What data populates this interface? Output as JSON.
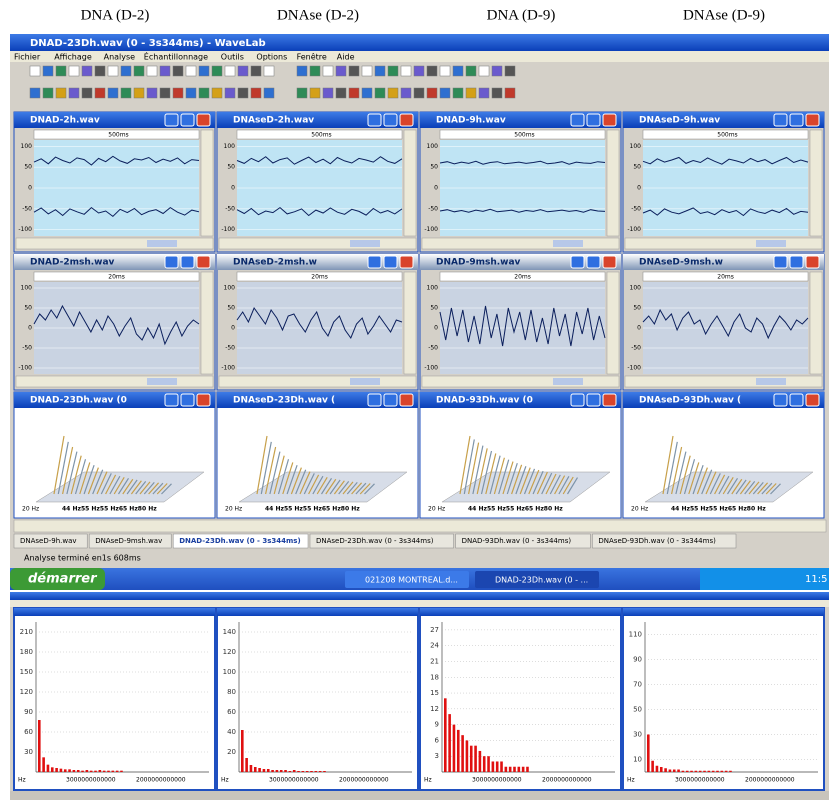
{
  "column_labels": [
    "DNA (D-2)",
    "DNAse (D-2)",
    "DNA (D-9)",
    "DNAse (D-9)"
  ],
  "window": {
    "title": "DNAD-23Dh.wav (0 - 3s344ms) - WaveLab",
    "menu": [
      "Fichier",
      "Affichage",
      "Analyse",
      "Échantillonnage",
      "Outils",
      "Options",
      "Fenêtre",
      "Aide"
    ]
  },
  "wave_windows": [
    {
      "title": "DNAD-2h.wav",
      "time_label": "500ms",
      "ylim": [
        -115,
        115
      ],
      "yticks": [
        100,
        50,
        0,
        -50,
        -100
      ],
      "upper": [
        62,
        70,
        58,
        74,
        66,
        60,
        72,
        68,
        55,
        71,
        63,
        76,
        65,
        59,
        70,
        67,
        73,
        61,
        69,
        64,
        72,
        58,
        68,
        66
      ],
      "lower": [
        -58,
        -48,
        -62,
        -52,
        -66,
        -50,
        -57,
        -63,
        -47,
        -60,
        -55,
        -68,
        -51,
        -59,
        -49,
        -64,
        -56,
        -52,
        -61,
        -47,
        -58,
        -65,
        -53,
        -57
      ]
    },
    {
      "title": "DNAseD-2h.wav",
      "time_label": "500ms",
      "ylim": [
        -115,
        115
      ],
      "yticks": [
        100,
        50,
        0,
        -50,
        -100
      ],
      "upper": [
        66,
        59,
        71,
        63,
        75,
        60,
        68,
        72,
        57,
        66,
        74,
        61,
        69,
        58,
        73,
        65,
        60,
        71,
        67,
        62,
        75,
        64,
        59,
        70
      ],
      "lower": [
        -52,
        -61,
        -49,
        -64,
        -55,
        -59,
        -47,
        -62,
        -57,
        -50,
        -66,
        -53,
        -60,
        -48,
        -58,
        -63,
        -51,
        -56,
        -65,
        -49,
        -60,
        -54,
        -62,
        -50
      ]
    },
    {
      "title": "DNAD-9h.wav",
      "time_label": "500ms",
      "ylim": [
        -115,
        115
      ],
      "yticks": [
        100,
        50,
        0,
        -50,
        -100
      ],
      "upper": [
        60,
        63,
        58,
        62,
        59,
        64,
        57,
        61,
        63,
        58,
        60,
        62,
        59,
        61,
        64,
        58,
        60,
        63,
        57,
        62,
        60,
        59,
        63,
        61
      ],
      "lower": [
        -55,
        -52,
        -57,
        -54,
        -58,
        -53,
        -56,
        -51,
        -57,
        -55,
        -53,
        -58,
        -54,
        -56,
        -52,
        -57,
        -55,
        -53,
        -56,
        -54,
        -58,
        -52,
        -55,
        -56
      ]
    },
    {
      "title": "DNAseD-9h.wav",
      "time_label": "500ms",
      "ylim": [
        -115,
        115
      ],
      "yticks": [
        100,
        50,
        0,
        -50,
        -100
      ],
      "upper": [
        64,
        58,
        70,
        62,
        67,
        73,
        59,
        66,
        61,
        72,
        64,
        57,
        69,
        65,
        60,
        71,
        63,
        68,
        58,
        66,
        73,
        61,
        67,
        62
      ],
      "lower": [
        -60,
        -53,
        -65,
        -50,
        -58,
        -62,
        -55,
        -48,
        -61,
        -57,
        -64,
        -52,
        -59,
        -54,
        -66,
        -50,
        -57,
        -61,
        -53,
        -59,
        -49,
        -63,
        -56,
        -58
      ]
    }
  ],
  "zoom_windows": [
    {
      "title": "DNAD-2msh.wav",
      "time_label": "20ms",
      "ylim": [
        -115,
        115
      ],
      "yticks": [
        100,
        50,
        0,
        -50,
        -100
      ],
      "values": [
        10,
        35,
        20,
        45,
        25,
        55,
        30,
        5,
        40,
        15,
        -10,
        20,
        -5,
        30,
        10,
        -20,
        5,
        25,
        -15,
        -30,
        0,
        -25,
        10,
        -40,
        -10,
        15,
        -20,
        5,
        20,
        10
      ]
    },
    {
      "title": "DNAseD-2msh.w",
      "time_label": "20ms",
      "ylim": [
        -115,
        115
      ],
      "yticks": [
        100,
        50,
        0,
        -50,
        -100
      ],
      "values": [
        20,
        40,
        15,
        50,
        30,
        10,
        45,
        25,
        -5,
        30,
        35,
        10,
        -10,
        20,
        40,
        0,
        -20,
        15,
        30,
        -5,
        -25,
        10,
        25,
        -15,
        5,
        30,
        10,
        -10,
        20,
        15
      ]
    },
    {
      "title": "DNAD-9msh.wav",
      "time_label": "20ms",
      "ylim": [
        -115,
        115
      ],
      "yticks": [
        100,
        50,
        0,
        -50,
        -100
      ],
      "values": [
        40,
        -30,
        50,
        -20,
        45,
        -35,
        30,
        -40,
        55,
        -25,
        35,
        -45,
        50,
        -10,
        40,
        -30,
        45,
        -35,
        25,
        -40,
        50,
        -20,
        35,
        -45,
        40,
        -15,
        50,
        -30,
        30,
        -25
      ]
    },
    {
      "title": "DNAseD-9msh.w",
      "time_label": "20ms",
      "ylim": [
        -115,
        115
      ],
      "yticks": [
        100,
        50,
        0,
        -50,
        -100
      ],
      "values": [
        15,
        30,
        10,
        45,
        20,
        35,
        -5,
        25,
        40,
        10,
        20,
        -15,
        10,
        30,
        5,
        -20,
        15,
        35,
        0,
        -10,
        25,
        10,
        -25,
        5,
        30,
        15,
        -5,
        20,
        10,
        25
      ]
    }
  ],
  "spectrum_3d_windows": [
    {
      "title": "DNAD-23Dh.wav (0",
      "x_labels": [
        "20 Hz",
        "44 Hz55 Hz55 Hz65 Hz80 Hz"
      ]
    },
    {
      "title": "DNAseD-23Dh.wav (",
      "x_labels": [
        "20 Hz",
        "44 Hz55 Hz55 Hz65 Hz80 Hz"
      ]
    },
    {
      "title": "DNAD-93Dh.wav (0",
      "x_labels": [
        "20 Hz",
        "44 Hz55 Hz55 Hz65 Hz80 Hz"
      ]
    },
    {
      "title": "DNAseD-93Dh.wav (",
      "x_labels": [
        "20 Hz",
        "44 Hz55 Hz55 Hz65 Hz80 Hz"
      ]
    }
  ],
  "tabs": [
    "DNAseD-9h.wav",
    "DNAseD-9msh.wav",
    "DNAD-23Dh.wav (0 - 3s344ms)",
    "DNAseD-23Dh.wav (0 - 3s344ms)",
    "DNAD-93Dh.wav (0 - 3s344ms)",
    "DNAseD-93Dh.wav (0 - 3s344ms)"
  ],
  "status": "Analyse terminé en1s 608ms",
  "taskbar": {
    "start": "démarrer",
    "tasks": [
      "021208 MONTREAL.d...",
      "DNAD-23Dh.wav (0 - ..."
    ],
    "clock": "11:5"
  },
  "spectra": [
    {
      "ylim": [
        0,
        225
      ],
      "yticks": [
        210,
        180,
        150,
        120,
        90,
        60,
        30
      ],
      "x_labels": [
        "Hz",
        "3000000000000",
        "2000000000000"
      ],
      "values": [
        78,
        22,
        11,
        7,
        6,
        5,
        4,
        4,
        3,
        3,
        2,
        3,
        2,
        2,
        3,
        2,
        2,
        2,
        2,
        2
      ]
    },
    {
      "ylim": [
        0,
        150
      ],
      "yticks": [
        140,
        120,
        100,
        80,
        60,
        40,
        20
      ],
      "x_labels": [
        "Hz",
        "3000000000000",
        "2000000000000"
      ],
      "values": [
        42,
        14,
        7,
        5,
        4,
        3,
        3,
        2,
        2,
        2,
        2,
        1,
        2,
        1,
        1,
        1,
        1,
        1,
        1,
        1
      ]
    },
    {
      "ylim": [
        0,
        28.5
      ],
      "yticks": [
        27,
        24,
        21,
        18,
        15,
        12,
        9,
        6,
        3
      ],
      "x_labels": [
        "Hz",
        "3000000000000",
        "2000000000000"
      ],
      "values": [
        14,
        11,
        9,
        8,
        7,
        6,
        5,
        5,
        4,
        3,
        3,
        2,
        2,
        2,
        1,
        1,
        1,
        1,
        1,
        1
      ]
    },
    {
      "ylim": [
        0,
        120
      ],
      "yticks": [
        110,
        90,
        70,
        50,
        30,
        10
      ],
      "x_labels": [
        "Hz",
        "3000000000000",
        "2000000000000"
      ],
      "values": [
        30,
        9,
        5,
        4,
        3,
        2,
        2,
        2,
        1,
        1,
        1,
        1,
        1,
        1,
        1,
        1,
        1,
        1,
        1,
        1
      ]
    }
  ]
}
